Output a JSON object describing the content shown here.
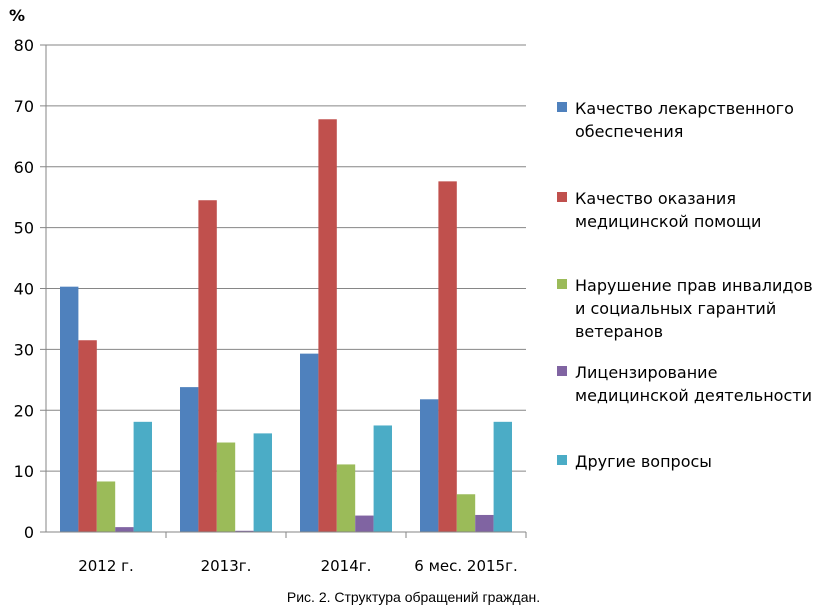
{
  "chart_data": {
    "type": "bar",
    "ylabel": "%",
    "xlabel": "",
    "ylim": [
      0,
      80
    ],
    "yticks": [
      0,
      10,
      20,
      30,
      40,
      50,
      60,
      70,
      80
    ],
    "grid": true,
    "legend_position": "right",
    "categories": [
      "2012 г.",
      "2013г.",
      "2014г.",
      "6 мес. 2015г."
    ],
    "series": [
      {
        "name": "Качество лекарственного обеспечения",
        "legend_lines": [
          "Качество лекарственного",
          "обеспечения"
        ],
        "color": "#4F81BD",
        "values": [
          40.3,
          23.8,
          29.3,
          21.8
        ]
      },
      {
        "name": "Качество оказания медицинской помощи",
        "legend_lines": [
          "Качество оказания",
          "медицинской помощи"
        ],
        "color": "#C0504D",
        "values": [
          31.5,
          54.5,
          67.8,
          57.6
        ]
      },
      {
        "name": "Нарушение прав инвалидов и социальных гарантий ветеранов",
        "legend_lines": [
          "Нарушение прав инвалидов",
          "и социальных гарантий",
          "ветеранов"
        ],
        "color": "#9BBB59",
        "values": [
          8.3,
          14.7,
          11.1,
          6.2
        ]
      },
      {
        "name": "Лицензирование медицинской деятельности",
        "legend_lines": [
          "Лицензирование",
          "медицинской деятельности"
        ],
        "color": "#8064A2",
        "values": [
          0.8,
          0.2,
          2.7,
          2.8
        ]
      },
      {
        "name": "Другие вопросы",
        "legend_lines": [
          "Другие вопросы"
        ],
        "color": "#4BACC6",
        "values": [
          18.1,
          16.2,
          17.5,
          18.1
        ]
      }
    ]
  },
  "caption": "Рис. 2. Структура обращений граждан."
}
